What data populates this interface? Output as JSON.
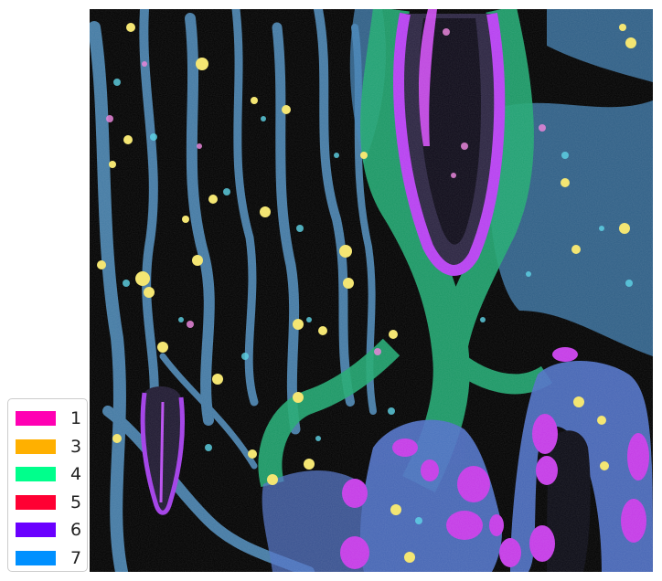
{
  "image": {
    "description_icon": "multiplex-fluorescence-tissue-image",
    "channel_colors": {
      "background": "#000000",
      "stroma_blue": "#5aa6d8",
      "epithelium_blue": "#5b7fd6",
      "muscle_green": "#1fb47a",
      "nuclei_magenta": "#c43ae6",
      "immune_yellow": "#f3e46a",
      "cyan": "#4fd6e0"
    }
  },
  "legend": {
    "items": [
      {
        "label": "1",
        "color": "#ff00b3"
      },
      {
        "label": "3",
        "color": "#ffb000"
      },
      {
        "label": "4",
        "color": "#00ff8c"
      },
      {
        "label": "5",
        "color": "#ff0033"
      },
      {
        "label": "6",
        "color": "#6a00ff"
      },
      {
        "label": "7",
        "color": "#0090ff"
      }
    ]
  }
}
